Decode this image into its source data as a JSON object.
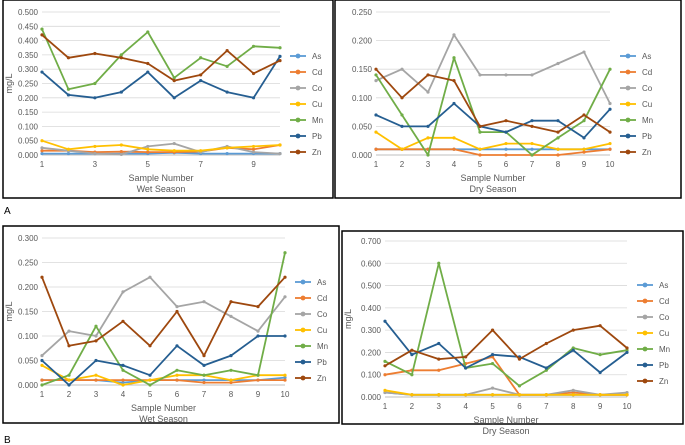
{
  "figure": {
    "panel_labels": [
      "A",
      "B"
    ]
  },
  "series_colors": {
    "As": "#5B9BD5",
    "Cd": "#ED7D31",
    "Co": "#A5A5A5",
    "Cu": "#FFC000",
    "Mn": "#70AD47",
    "Pb": "#255E91",
    "Zn": "#9E480E"
  },
  "chart_data": [
    {
      "type": "line",
      "panel": "A",
      "xlabel": "Sample Number",
      "subtitle": "Wet Season",
      "ylabel": "mg/L",
      "ylim": [
        0,
        0.5
      ],
      "yticks": [
        "0.000",
        "0.050",
        "0.100",
        "0.150",
        "0.200",
        "0.250",
        "0.300",
        "0.350",
        "0.400",
        "0.450",
        "0.500"
      ],
      "x": [
        1,
        2,
        3,
        4,
        5,
        6,
        7,
        8,
        9,
        10
      ],
      "xticks": [
        "1",
        "3",
        "5",
        "7",
        "9"
      ],
      "grid": true,
      "legend": "right",
      "series": [
        {
          "name": "As",
          "values": [
            0.005,
            0.005,
            0.005,
            0.005,
            0.005,
            0.008,
            0.005,
            0.005,
            0.005,
            0.005
          ]
        },
        {
          "name": "Cd",
          "values": [
            0.015,
            0.015,
            0.01,
            0.012,
            0.01,
            0.01,
            0.012,
            0.025,
            0.02,
            0.035
          ]
        },
        {
          "name": "Co",
          "values": [
            0.025,
            0.015,
            0.005,
            0.002,
            0.03,
            0.04,
            0.01,
            0.03,
            0.01,
            0.005
          ]
        },
        {
          "name": "Cu",
          "values": [
            0.05,
            0.02,
            0.03,
            0.035,
            0.02,
            0.015,
            0.015,
            0.025,
            0.03,
            0.035
          ]
        },
        {
          "name": "Mn",
          "values": [
            0.44,
            0.23,
            0.25,
            0.35,
            0.43,
            0.27,
            0.34,
            0.31,
            0.38,
            0.375
          ]
        },
        {
          "name": "Pb",
          "values": [
            0.29,
            0.21,
            0.2,
            0.22,
            0.29,
            0.2,
            0.26,
            0.22,
            0.2,
            0.345
          ]
        },
        {
          "name": "Zn",
          "values": [
            0.42,
            0.34,
            0.355,
            0.34,
            0.32,
            0.26,
            0.28,
            0.365,
            0.285,
            0.33
          ]
        }
      ]
    },
    {
      "type": "line",
      "panel": "A",
      "xlabel": "Sample Number",
      "subtitle": "Dry Season",
      "ylabel": "",
      "ylim": [
        0,
        0.25
      ],
      "yticks": [
        "0.000",
        "0.050",
        "0.100",
        "0.150",
        "0.200",
        "0.250"
      ],
      "x": [
        1,
        2,
        3,
        4,
        5,
        6,
        7,
        8,
        9,
        10
      ],
      "xticks": [
        "1",
        "2",
        "3",
        "4",
        "5",
        "6",
        "7",
        "8",
        "9",
        "10"
      ],
      "grid": true,
      "legend": "right",
      "series": [
        {
          "name": "As",
          "values": [
            0.01,
            0.01,
            0.01,
            0.01,
            0.01,
            0.01,
            0.01,
            0.01,
            0.01,
            0.01
          ]
        },
        {
          "name": "Cd",
          "values": [
            0.01,
            0.01,
            0.01,
            0.01,
            0.0,
            0.0,
            0.0,
            0.0,
            0.005,
            0.01
          ]
        },
        {
          "name": "Co",
          "values": [
            0.13,
            0.15,
            0.11,
            0.21,
            0.14,
            0.14,
            0.14,
            0.16,
            0.18,
            0.09
          ]
        },
        {
          "name": "Cu",
          "values": [
            0.04,
            0.01,
            0.03,
            0.03,
            0.01,
            0.02,
            0.02,
            0.01,
            0.01,
            0.02
          ]
        },
        {
          "name": "Mn",
          "values": [
            0.14,
            0.07,
            0.0,
            0.17,
            0.04,
            0.04,
            0.0,
            0.03,
            0.06,
            0.15
          ]
        },
        {
          "name": "Pb",
          "values": [
            0.07,
            0.05,
            0.05,
            0.09,
            0.05,
            0.04,
            0.06,
            0.06,
            0.03,
            0.08
          ]
        },
        {
          "name": "Zn",
          "values": [
            0.15,
            0.1,
            0.14,
            0.13,
            0.05,
            0.06,
            0.05,
            0.04,
            0.07,
            0.04
          ]
        }
      ]
    },
    {
      "type": "line",
      "panel": "B",
      "xlabel": "Sample Number",
      "subtitle": "Wet Season",
      "ylabel": "mg/L",
      "ylim": [
        0,
        0.3
      ],
      "yticks": [
        "0.000",
        "0.050",
        "0.100",
        "0.150",
        "0.200",
        "0.250",
        "0.300"
      ],
      "x": [
        1,
        2,
        3,
        4,
        5,
        6,
        7,
        8,
        9,
        10
      ],
      "xticks": [
        "1",
        "2",
        "3",
        "4",
        "5",
        "6",
        "7",
        "8",
        "9",
        "10"
      ],
      "grid": true,
      "legend": "right",
      "series": [
        {
          "name": "As",
          "values": [
            0.01,
            0.01,
            0.01,
            0.005,
            0.01,
            0.01,
            0.01,
            0.01,
            0.01,
            0.015
          ]
        },
        {
          "name": "Cd",
          "values": [
            0.01,
            0.01,
            0.01,
            0.01,
            0.01,
            0.01,
            0.005,
            0.005,
            0.01,
            0.01
          ]
        },
        {
          "name": "Co",
          "values": [
            0.06,
            0.11,
            0.1,
            0.19,
            0.22,
            0.16,
            0.17,
            0.14,
            0.11,
            0.18
          ]
        },
        {
          "name": "Cu",
          "values": [
            0.04,
            0.01,
            0.02,
            0.0,
            0.01,
            0.02,
            0.02,
            0.01,
            0.02,
            0.02
          ]
        },
        {
          "name": "Mn",
          "values": [
            0.0,
            0.02,
            0.12,
            0.03,
            0.0,
            0.03,
            0.02,
            0.03,
            0.02,
            0.27
          ]
        },
        {
          "name": "Pb",
          "values": [
            0.05,
            0.0,
            0.05,
            0.04,
            0.02,
            0.08,
            0.04,
            0.06,
            0.1,
            0.1
          ]
        },
        {
          "name": "Zn",
          "values": [
            0.22,
            0.08,
            0.09,
            0.13,
            0.08,
            0.15,
            0.06,
            0.17,
            0.16,
            0.22
          ]
        }
      ]
    },
    {
      "type": "line",
      "panel": "B",
      "xlabel": "Sample Number",
      "subtitle": "Dry Season",
      "ylabel": "mg/L",
      "ylim": [
        0,
        0.7
      ],
      "yticks": [
        "0.000",
        "0.100",
        "0.200",
        "0.300",
        "0.400",
        "0.500",
        "0.600",
        "0.700"
      ],
      "x": [
        1,
        2,
        3,
        4,
        5,
        6,
        7,
        8,
        9,
        10
      ],
      "xticks": [
        "1",
        "2",
        "3",
        "4",
        "5",
        "6",
        "7",
        "8",
        "9",
        "10"
      ],
      "grid": true,
      "legend": "right",
      "series": [
        {
          "name": "As",
          "values": [
            0.02,
            0.01,
            0.01,
            0.01,
            0.01,
            0.01,
            0.01,
            0.01,
            0.01,
            0.01
          ]
        },
        {
          "name": "Cd",
          "values": [
            0.1,
            0.12,
            0.12,
            0.15,
            0.18,
            0.01,
            0.01,
            0.02,
            0.01,
            0.01
          ]
        },
        {
          "name": "Co",
          "values": [
            0.02,
            0.01,
            0.01,
            0.01,
            0.04,
            0.01,
            0.01,
            0.03,
            0.01,
            0.02
          ]
        },
        {
          "name": "Cu",
          "values": [
            0.03,
            0.01,
            0.01,
            0.01,
            0.01,
            0.01,
            0.01,
            0.01,
            0.01,
            0.01
          ]
        },
        {
          "name": "Mn",
          "values": [
            0.16,
            0.1,
            0.6,
            0.13,
            0.15,
            0.05,
            0.12,
            0.22,
            0.19,
            0.21
          ]
        },
        {
          "name": "Pb",
          "values": [
            0.34,
            0.19,
            0.24,
            0.13,
            0.19,
            0.18,
            0.13,
            0.21,
            0.11,
            0.2
          ]
        },
        {
          "name": "Zn",
          "values": [
            0.14,
            0.21,
            0.17,
            0.18,
            0.3,
            0.17,
            0.24,
            0.3,
            0.32,
            0.22
          ]
        }
      ]
    }
  ]
}
